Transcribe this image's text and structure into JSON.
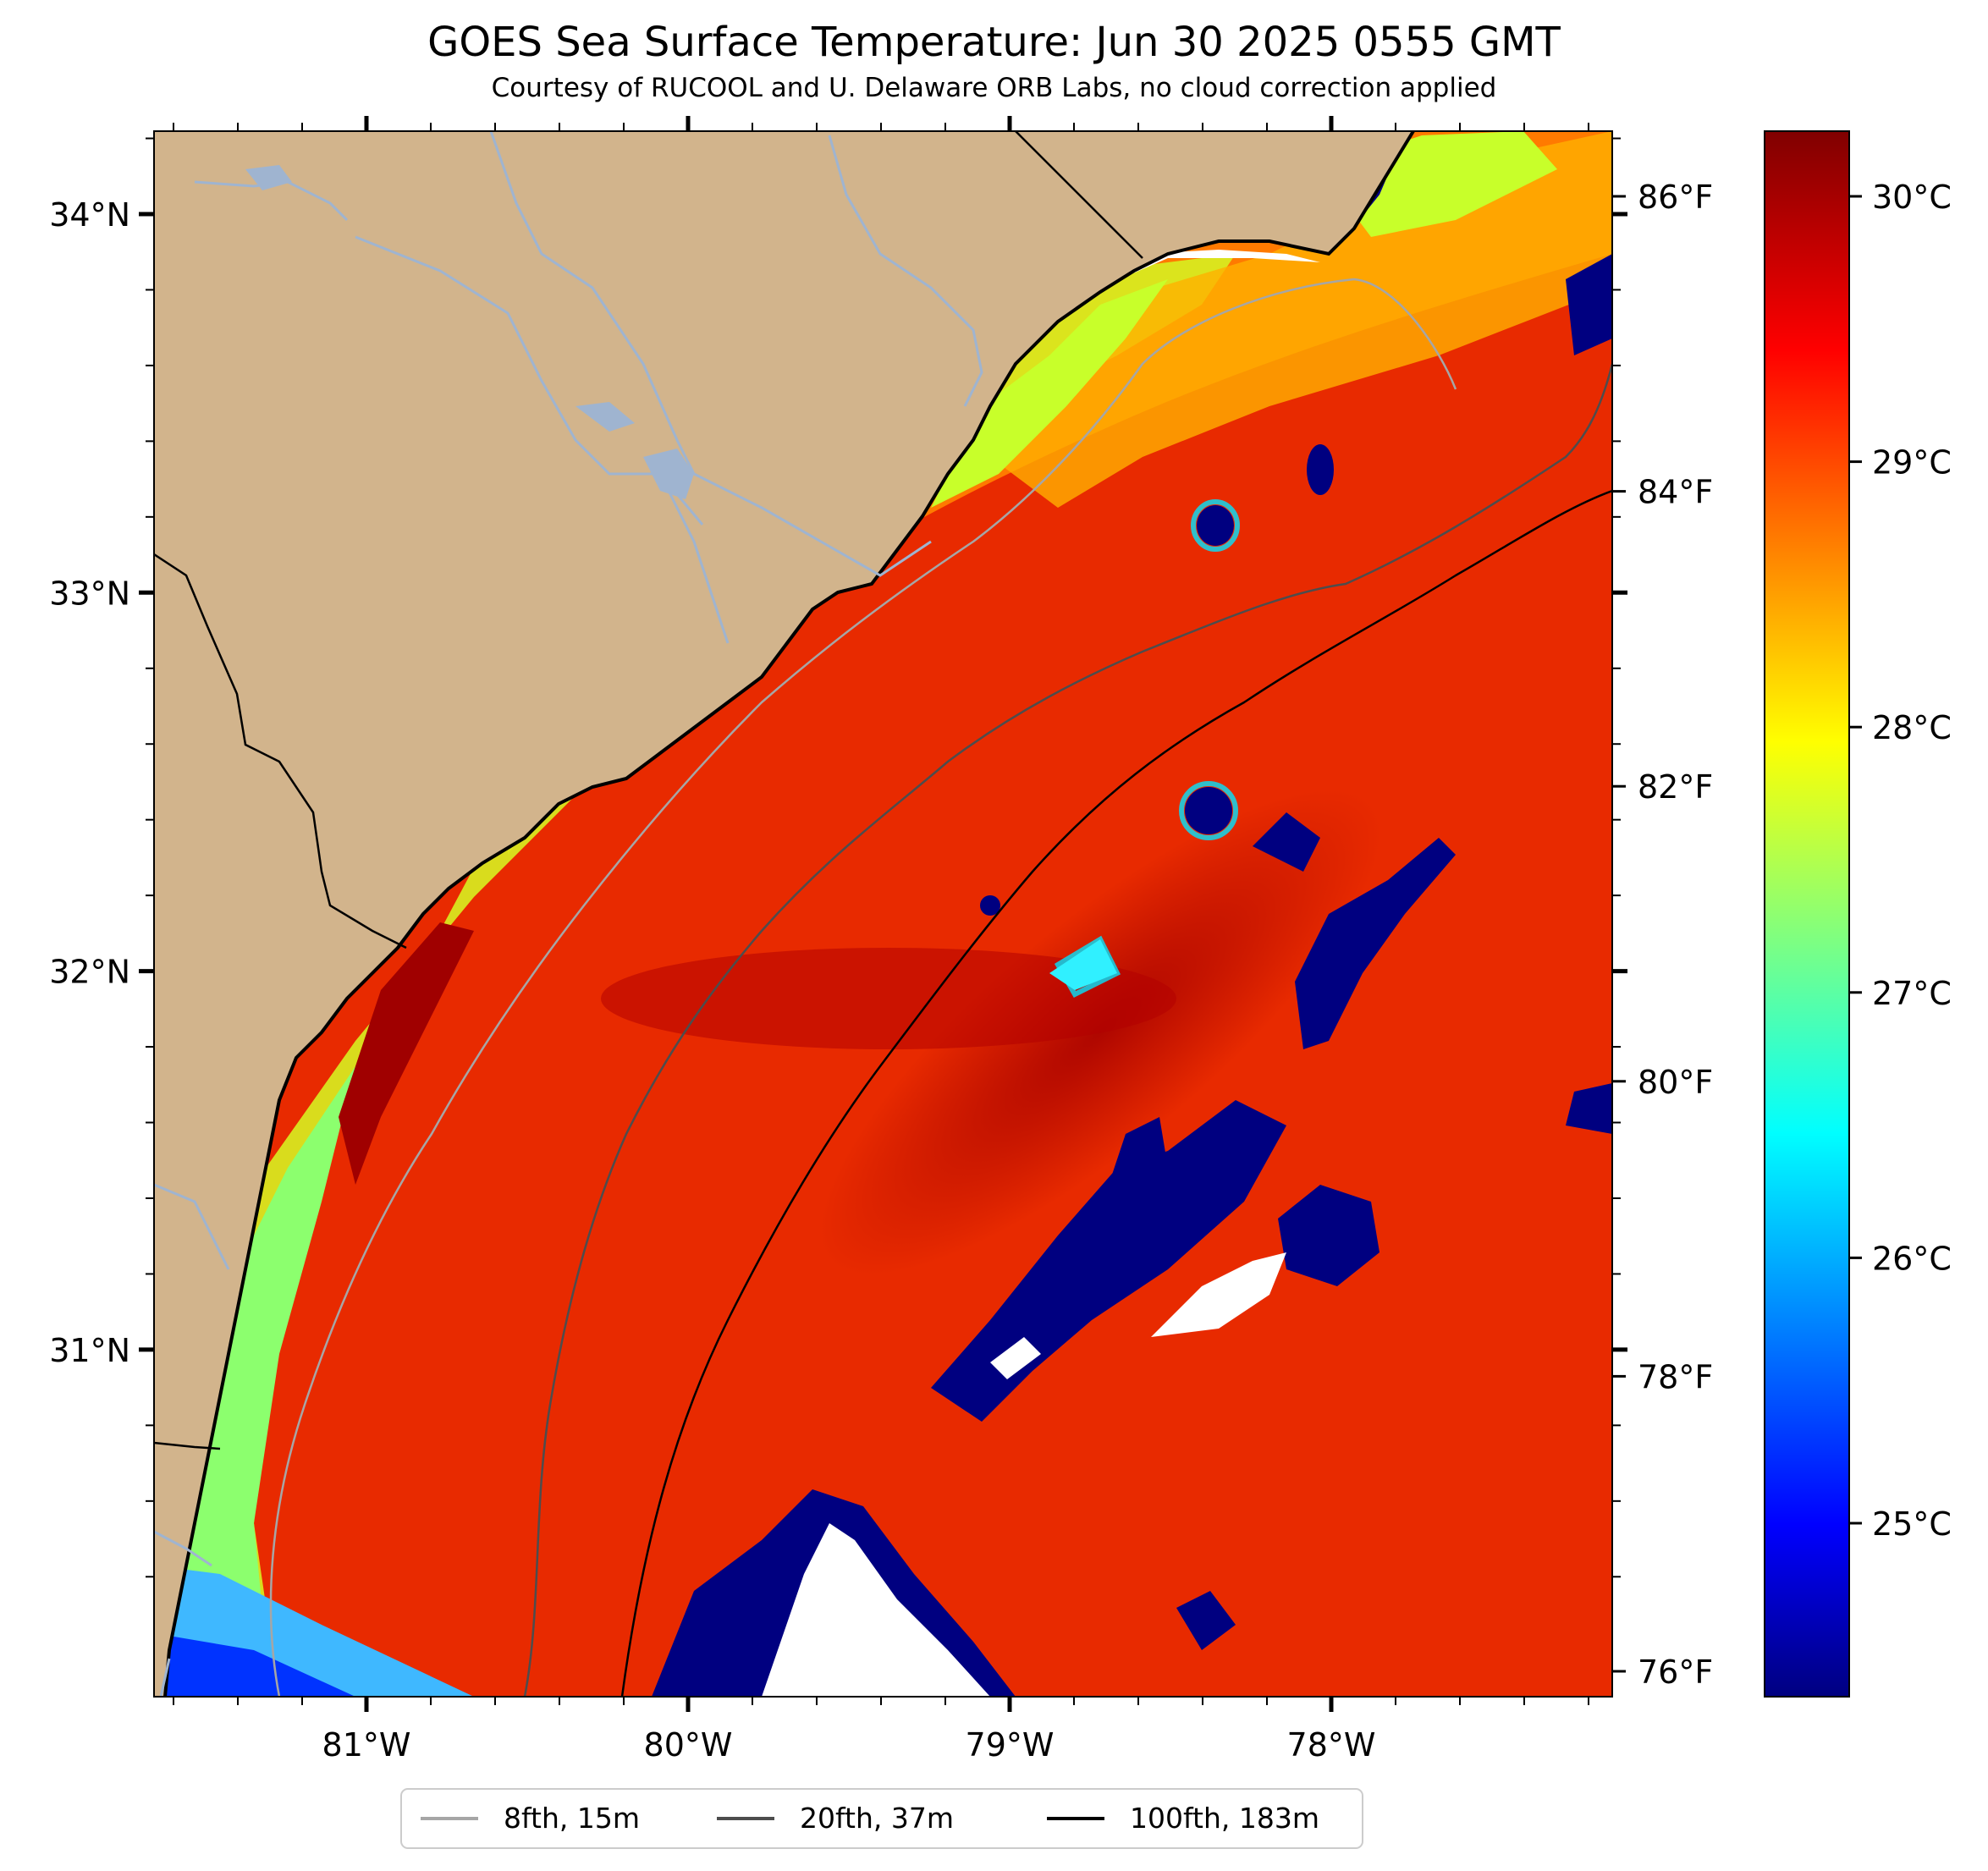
{
  "header": {
    "title": "GOES Sea Surface Temperature: Jun 30 2025 0555 GMT",
    "subtitle": "Courtesy of RUCOOL and U. Delaware ORB Labs, no cloud correction applied"
  },
  "map": {
    "lat_ticks": [
      {
        "value": 34,
        "label": "34°N"
      },
      {
        "value": 33,
        "label": "33°N"
      },
      {
        "value": 32,
        "label": "32°N"
      },
      {
        "value": 31,
        "label": "31°N"
      }
    ],
    "lon_ticks": [
      {
        "value": -81,
        "label": "81°W"
      },
      {
        "value": -80,
        "label": "80°W"
      },
      {
        "value": -79,
        "label": "79°W"
      },
      {
        "value": -78,
        "label": "78°W"
      }
    ],
    "land_color": "#d2b48c",
    "cloud_color": "#ffffff"
  },
  "colorbar": {
    "colormap": "jet",
    "celsius_ticks": [
      {
        "value": 30,
        "label": "30°C"
      },
      {
        "value": 29,
        "label": "29°C"
      },
      {
        "value": 28,
        "label": "28°C"
      },
      {
        "value": 27,
        "label": "27°C"
      },
      {
        "value": 26,
        "label": "26°C"
      },
      {
        "value": 25,
        "label": "25°C"
      }
    ],
    "fahrenheit_ticks": [
      {
        "value": 86,
        "label": "86°F"
      },
      {
        "value": 84,
        "label": "84°F"
      },
      {
        "value": 82,
        "label": "82°F"
      },
      {
        "value": 80,
        "label": "80°F"
      },
      {
        "value": 78,
        "label": "78°F"
      },
      {
        "value": 76,
        "label": "76°F"
      }
    ]
  },
  "legend": {
    "placement": "bottom-center",
    "items": [
      {
        "label": "8fth, 15m",
        "color": "#a6a6a6"
      },
      {
        "label": "20fth, 37m",
        "color": "#4d4d4d"
      },
      {
        "label": "100fth, 183m",
        "color": "#000000"
      }
    ]
  }
}
